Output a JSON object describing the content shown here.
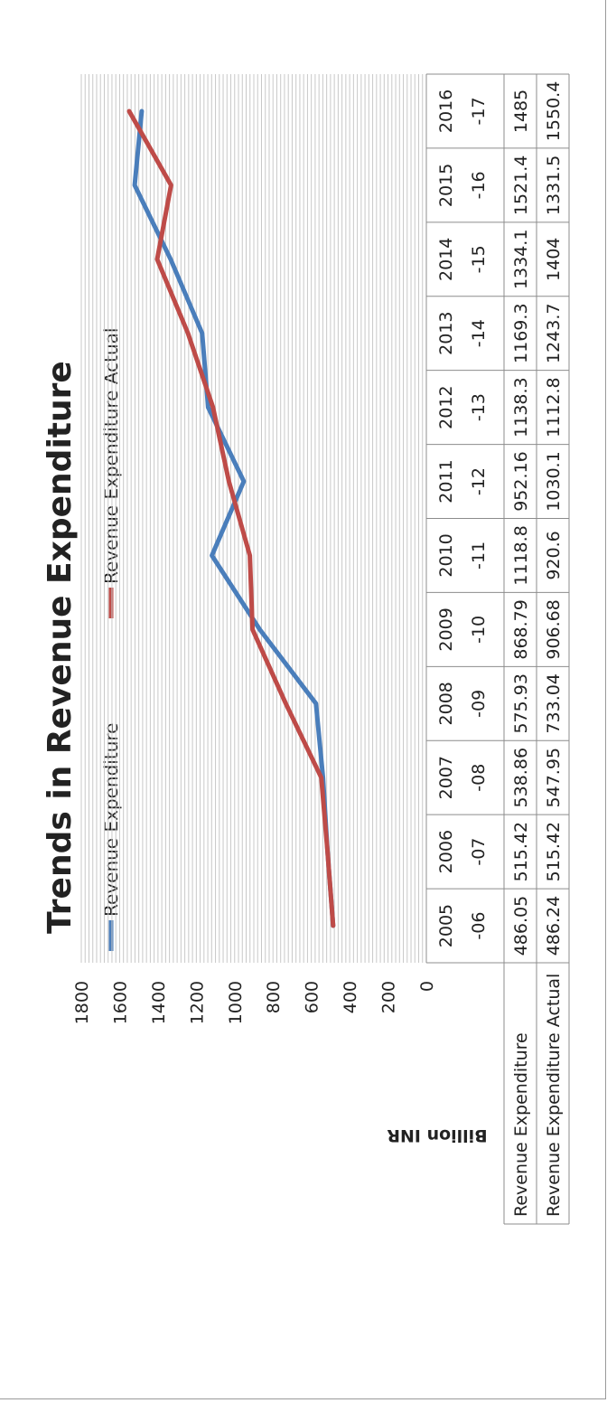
{
  "chart_data": {
    "type": "line",
    "title": "Trends in Revenue Expenditure",
    "ylabel": "Billion INR",
    "xlabel": "",
    "ylim": [
      0,
      1800
    ],
    "yticks": [
      "0",
      "200",
      "400",
      "600",
      "800",
      "1000",
      "1200",
      "1400",
      "1600",
      "1800"
    ],
    "grid": true,
    "legend_position": "top",
    "categories": [
      [
        "2005",
        "-06"
      ],
      [
        "2006",
        "-07"
      ],
      [
        "2007",
        "-08"
      ],
      [
        "2008",
        "-09"
      ],
      [
        "2009",
        "-10"
      ],
      [
        "2010",
        "-11"
      ],
      [
        "2011",
        "-12"
      ],
      [
        "2012",
        "-13"
      ],
      [
        "2013",
        "-14"
      ],
      [
        "2014",
        "-15"
      ],
      [
        "2015",
        "-16"
      ],
      [
        "2016",
        "-17"
      ]
    ],
    "series": [
      {
        "name": "Revenue Expenditure",
        "color": "#4a7ebb",
        "values": [
          486.05,
          515.42,
          538.86,
          575.93,
          868.79,
          1118.8,
          952.16,
          1138.3,
          1169.3,
          1334.1,
          1521.4,
          1485
        ],
        "labels": [
          "486.05",
          "515.42",
          "538.86",
          "575.93",
          "868.79",
          "1118.8",
          "952.16",
          "1138.3",
          "1169.3",
          "1334.1",
          "1521.4",
          "1485"
        ]
      },
      {
        "name": "Revenue Expenditure Actual",
        "color": "#be4b48",
        "values": [
          486.24,
          515.42,
          547.95,
          733.04,
          906.68,
          920.6,
          1030.1,
          1112.8,
          1243.7,
          1404,
          1331.5,
          1550.4
        ],
        "labels": [
          "486.24",
          "515.42",
          "547.95",
          "733.04",
          "906.68",
          "920.6",
          "1030.1",
          "1112.8",
          "1243.7",
          "1404",
          "1331.5",
          "1550.4"
        ]
      }
    ]
  }
}
